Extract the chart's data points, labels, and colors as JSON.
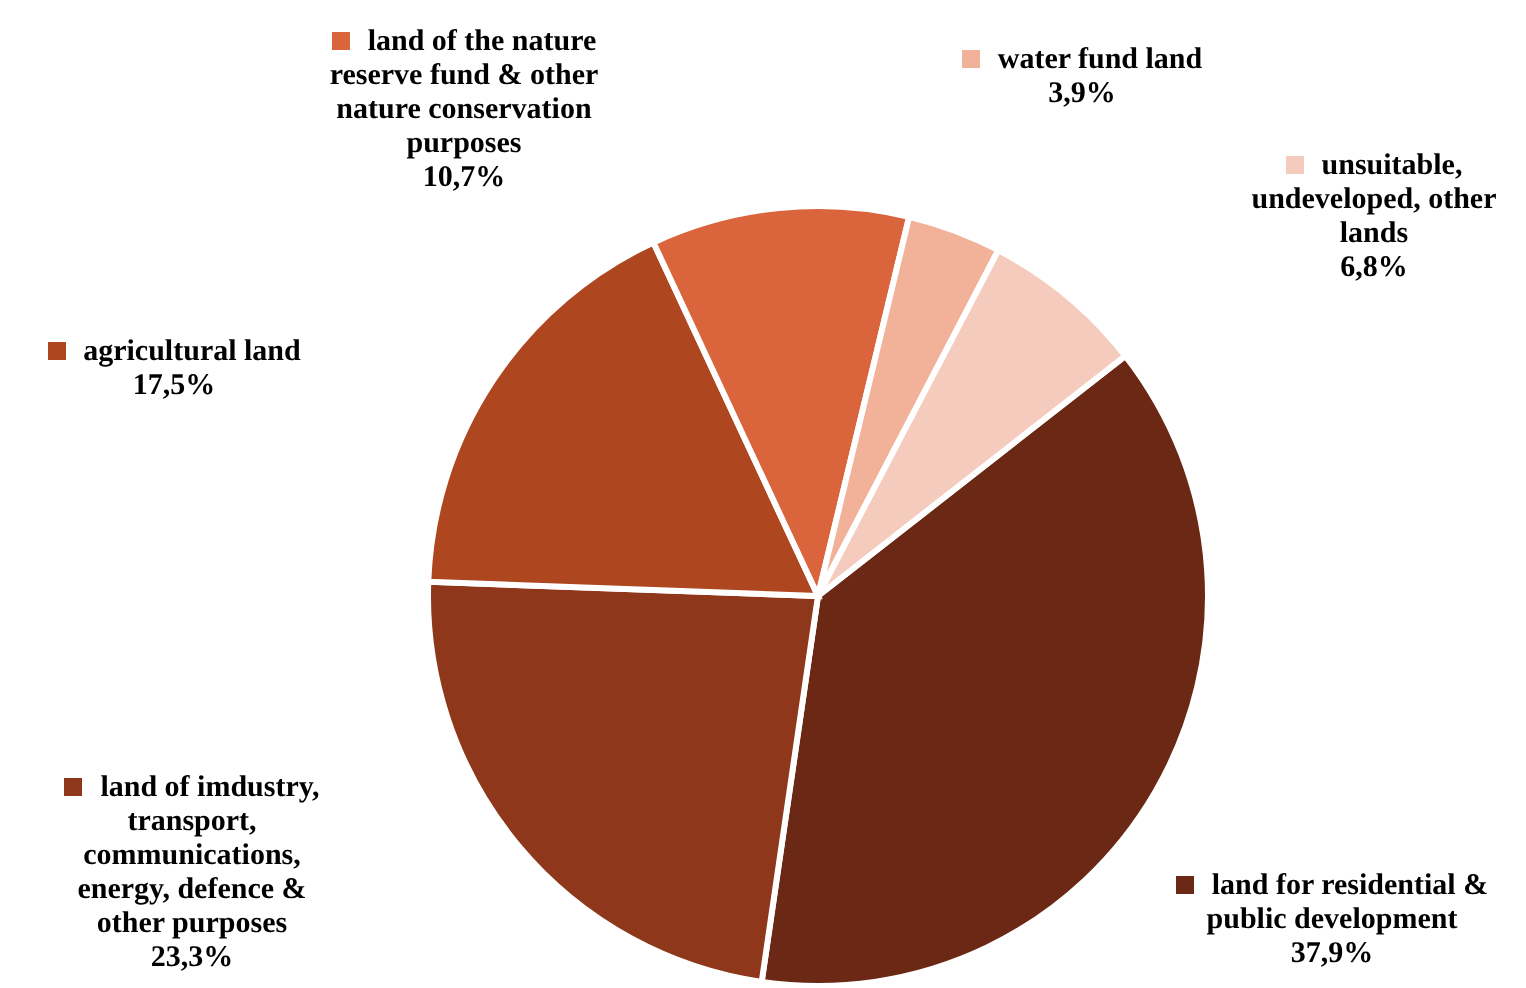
{
  "chart_data": {
    "type": "pie",
    "categories": [
      "land for residential & public development",
      "land of imdustry, transport, communications, energy, defence & other purposes",
      "agricultural land",
      "land of the nature reserve fund & other nature conservation purposes",
      "water fund land",
      "unsuitable, undeveloped, other lands"
    ],
    "values": [
      37.9,
      23.3,
      17.5,
      10.7,
      3.9,
      6.8
    ],
    "colors": [
      "#6b2915",
      "#8e371b",
      "#ae4620",
      "#da643c",
      "#f2b29a",
      "#f5cbbd"
    ],
    "value_labels": [
      "37,9%",
      "23,3%",
      "17,5%",
      "10,7%",
      "3,9%",
      "6,8%"
    ],
    "legend": "top left"
  }
}
